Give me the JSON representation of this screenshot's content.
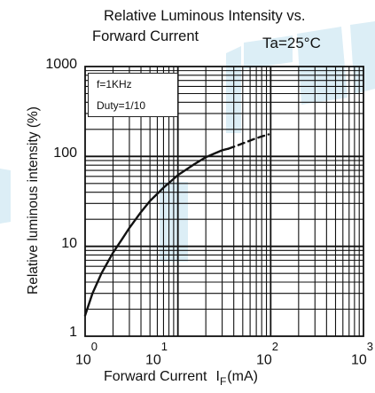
{
  "chart_data": {
    "type": "line",
    "title_line1": "Relative Luminous Intensity vs.",
    "title_line2": "Forward Current",
    "condition": "Ta=25°C",
    "xlabel": "Forward Current",
    "xlabel_symbol": "I",
    "xlabel_symbol_sub": "F",
    "xlabel_unit": "(mA)",
    "ylabel": "Relative luminous intensity (%)",
    "xscale": "log",
    "yscale": "log",
    "xlim": [
      1,
      1000
    ],
    "ylim": [
      1,
      1000
    ],
    "x_ticks": [
      {
        "base": "10",
        "exp": "0"
      },
      {
        "base": "10",
        "exp": "1"
      },
      {
        "base": "10",
        "exp": "2"
      },
      {
        "base": "10",
        "exp": "3"
      }
    ],
    "y_ticks": [
      "1",
      "10",
      "100",
      "1000"
    ],
    "grid": true,
    "legend_lines": [
      "f=1KHz",
      "Duty=1/10"
    ],
    "legend_position": "top-left",
    "series": [
      {
        "style": "solid",
        "x": [
          1,
          1.2,
          1.5,
          2,
          2.5,
          3,
          4,
          5,
          7,
          10,
          15,
          20,
          25,
          30,
          35
        ],
        "y": [
          1.7,
          3,
          5,
          8.5,
          12,
          16,
          24,
          32,
          45,
          62,
          82,
          98,
          108,
          117,
          122
        ]
      },
      {
        "style": "dashed",
        "x": [
          35,
          45,
          55,
          65,
          75,
          85,
          95
        ],
        "y": [
          122,
          134,
          145,
          155,
          163,
          170,
          176
        ]
      }
    ]
  }
}
